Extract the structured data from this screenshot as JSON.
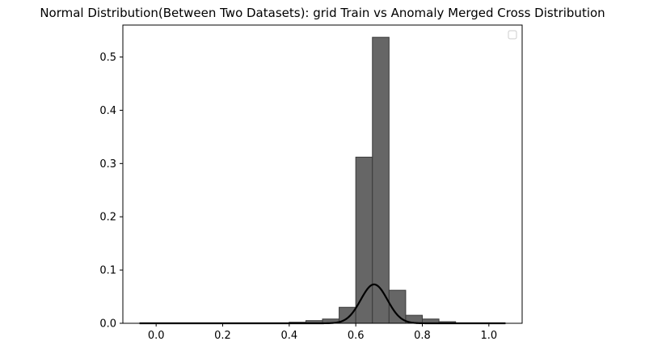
{
  "chart_data": {
    "type": "bar",
    "title": "Normal Distribution(Between Two Datasets): grid Train vs Anomaly Merged Cross Distribution",
    "xlabel": "",
    "ylabel": "",
    "xlim": [
      -0.1,
      1.1
    ],
    "ylim": [
      0,
      0.56
    ],
    "x_ticks": [
      0.0,
      0.2,
      0.4,
      0.6,
      0.8,
      1.0
    ],
    "x_tick_labels": [
      "0.0",
      "0.2",
      "0.4",
      "0.6",
      "0.8",
      "1.0"
    ],
    "y_ticks": [
      0.0,
      0.1,
      0.2,
      0.3,
      0.4,
      0.5
    ],
    "y_tick_labels": [
      "0.0",
      "0.1",
      "0.2",
      "0.3",
      "0.4",
      "0.5"
    ],
    "grid": false,
    "legend": {
      "location": "top-right",
      "entries": []
    },
    "histogram": {
      "color": "#666666",
      "edge_color": "#3a3a3a",
      "bin_edges": [
        -0.05,
        0.0,
        0.05,
        0.1,
        0.15,
        0.2,
        0.25,
        0.3,
        0.35,
        0.4,
        0.45,
        0.5,
        0.55,
        0.6,
        0.65,
        0.7,
        0.75,
        0.8,
        0.85,
        0.9,
        0.95,
        1.0,
        1.05
      ],
      "values": [
        0.0,
        0.0,
        0.0,
        0.0,
        0.0,
        0.0,
        0.0,
        0.0,
        0.0,
        0.002,
        0.005,
        0.008,
        0.03,
        0.312,
        0.537,
        0.062,
        0.015,
        0.008,
        0.003,
        0.0,
        0.0,
        0.0
      ]
    },
    "curve": {
      "type": "normal-pdf-scaled",
      "color": "#000000",
      "mean": 0.655,
      "std": 0.04,
      "peak": 0.073,
      "x_range": [
        -0.05,
        1.05
      ]
    }
  }
}
